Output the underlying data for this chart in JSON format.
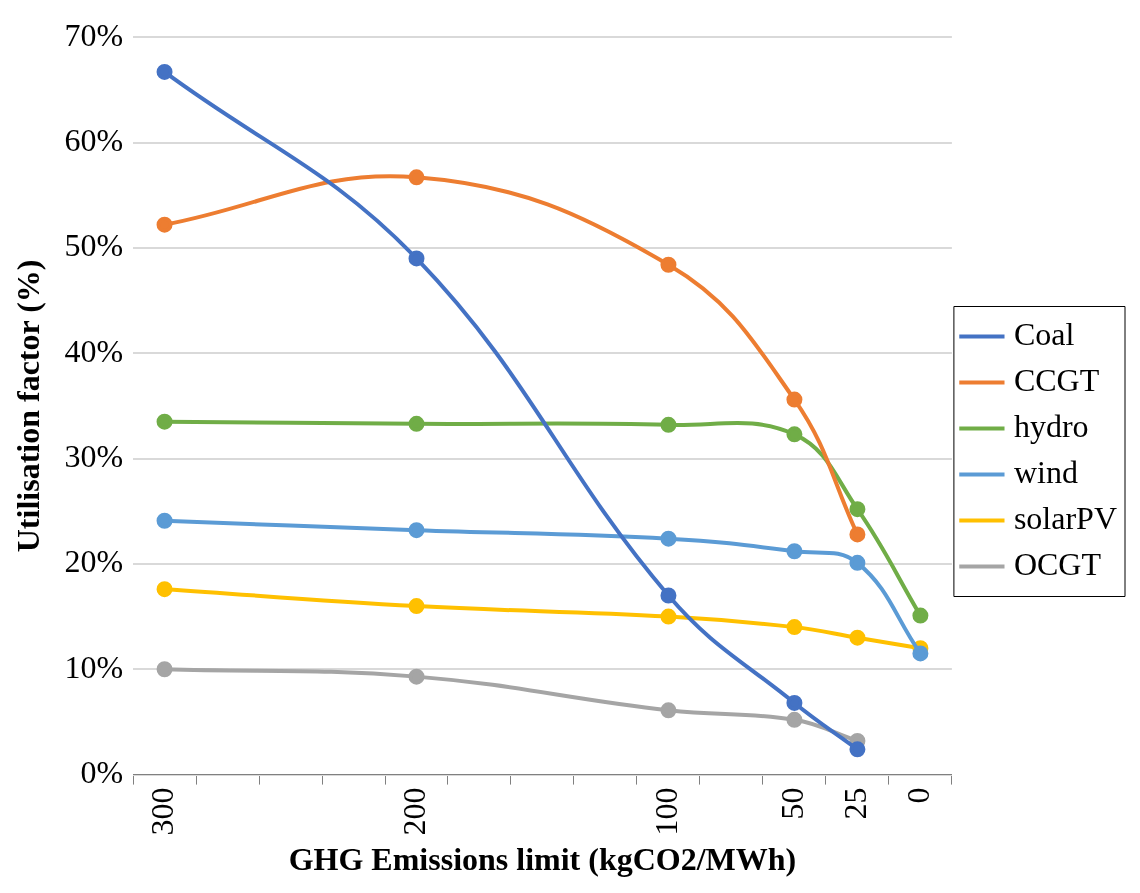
{
  "chart_data": {
    "type": "line",
    "xlabel": "GHG Emissions limit (kgCO2/MWh)",
    "ylabel": "Utilisation factor (%)",
    "categories": [
      "300",
      null,
      null,
      null,
      "200",
      null,
      null,
      null,
      "100",
      null,
      "50",
      "25",
      "0"
    ],
    "series": [
      {
        "name": "Coal",
        "color": "#4472c4",
        "values": [
          66.7,
          null,
          null,
          null,
          49,
          null,
          null,
          null,
          17,
          null,
          6.8,
          2.4,
          null
        ]
      },
      {
        "name": "CCGT",
        "color": "#ed7d31",
        "values": [
          52.2,
          null,
          null,
          null,
          56.7,
          null,
          null,
          null,
          48.4,
          null,
          35.6,
          22.8,
          null
        ]
      },
      {
        "name": "hydro",
        "color": "#70ad47",
        "values": [
          33.5,
          null,
          null,
          null,
          33.3,
          null,
          null,
          null,
          33.2,
          null,
          32.3,
          25.2,
          15.1
        ]
      },
      {
        "name": "wind",
        "color": "#5b9bd5",
        "values": [
          24.1,
          null,
          null,
          null,
          23.2,
          null,
          null,
          null,
          22.4,
          null,
          21.2,
          20.1,
          11.5
        ]
      },
      {
        "name": "solarPV",
        "color": "#ffc000",
        "values": [
          17.6,
          null,
          null,
          null,
          16,
          null,
          null,
          null,
          15,
          null,
          14,
          13,
          12
        ]
      },
      {
        "name": "OCGT",
        "color": "#a5a5a5",
        "values": [
          10,
          null,
          null,
          null,
          9.3,
          null,
          null,
          null,
          6.1,
          null,
          5.2,
          3.2,
          null
        ]
      }
    ],
    "ylim": [
      0,
      70
    ],
    "yticks": [
      {
        "value": 0,
        "label": "0%"
      },
      {
        "value": 10,
        "label": "10%"
      },
      {
        "value": 20,
        "label": "20%"
      },
      {
        "value": 30,
        "label": "30%"
      },
      {
        "value": 40,
        "label": "40%"
      },
      {
        "value": 50,
        "label": "50%"
      },
      {
        "value": 60,
        "label": "60%"
      },
      {
        "value": 70,
        "label": "70%"
      }
    ],
    "grid": "y",
    "legend": "right",
    "marker": "circle",
    "line_style": "solid"
  }
}
